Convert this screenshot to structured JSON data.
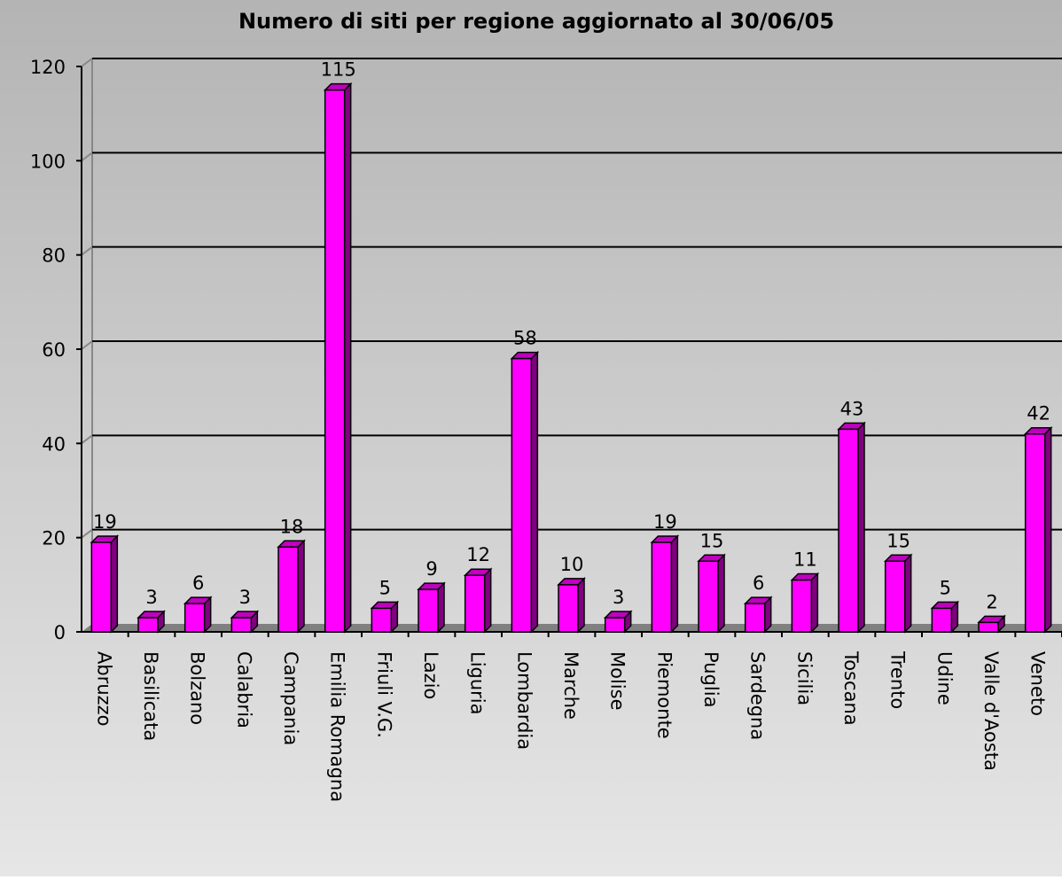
{
  "chart_data": {
    "type": "bar",
    "title": "Numero di siti per regione aggiornato al 30/06/05",
    "categories": [
      "Abruzzo",
      "Basilicata",
      "Bolzano",
      "Calabria",
      "Campania",
      "Emilia Romagna",
      "Friuli V.G.",
      "Lazio",
      "Liguria",
      "Lombardia",
      "Marche",
      "Molise",
      "Piemonte",
      "Puglia",
      "Sardegna",
      "Sicilia",
      "Toscana",
      "Trento",
      "Udine",
      "Valle d'Aosta",
      "Veneto"
    ],
    "values": [
      19,
      3,
      6,
      3,
      18,
      115,
      5,
      9,
      12,
      58,
      10,
      3,
      19,
      15,
      6,
      11,
      43,
      15,
      5,
      2,
      42
    ],
    "color": "#ff00ff",
    "ylim": [
      0,
      120
    ],
    "yticks": [
      0,
      20,
      40,
      60,
      80,
      100,
      120
    ],
    "grid": true
  }
}
